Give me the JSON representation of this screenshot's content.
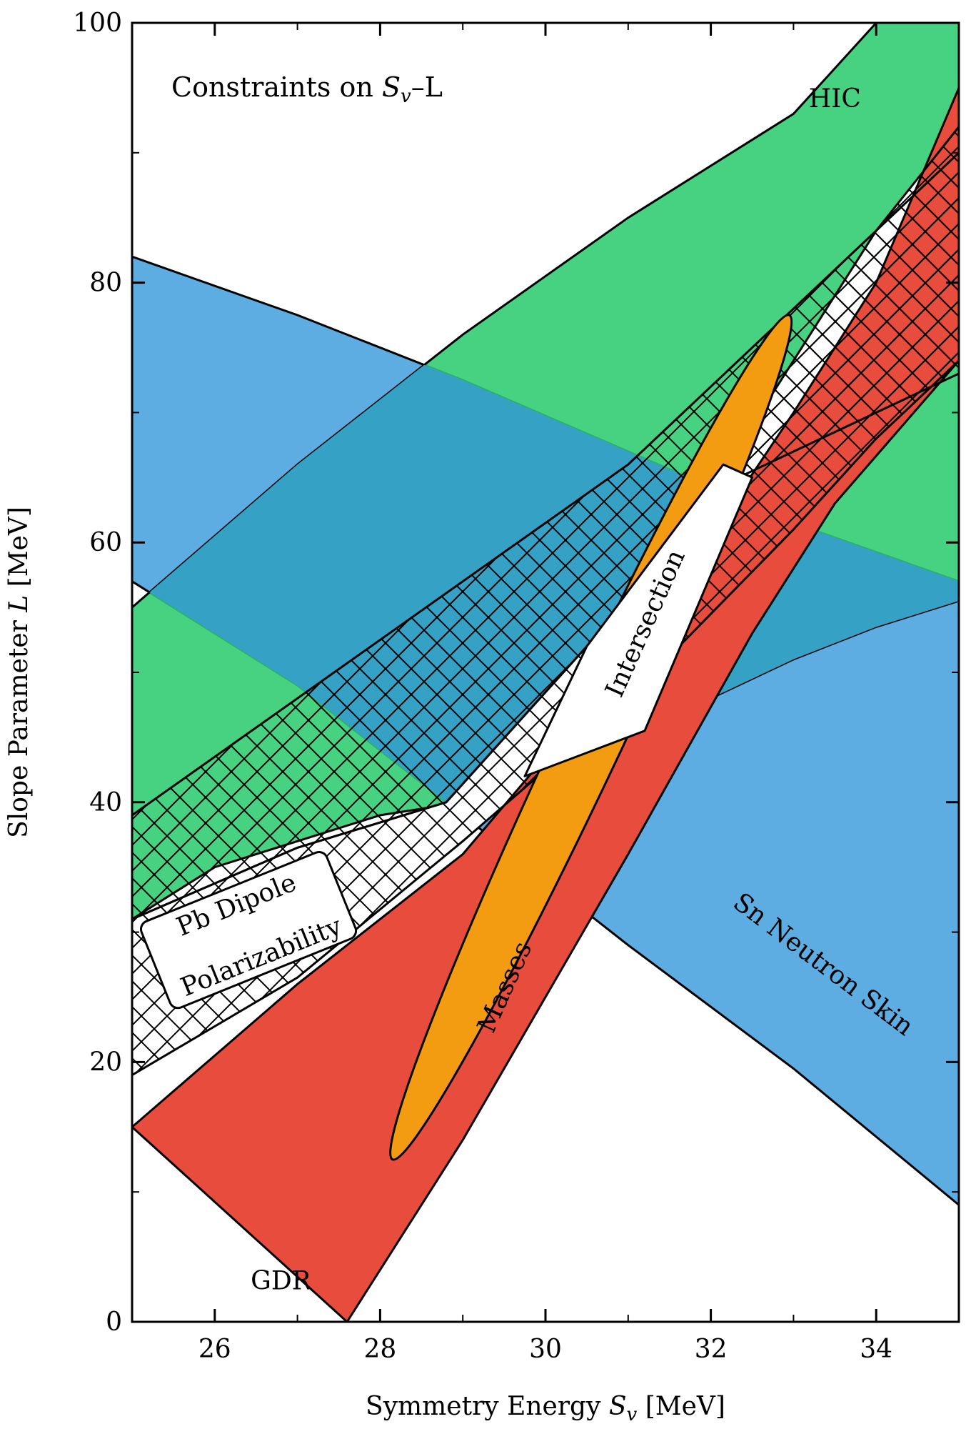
{
  "chart_data": {
    "type": "area",
    "title": "Constraints on S_v–L",
    "title_parts": {
      "prefix": "Constraints on ",
      "var": "S",
      "sub": "v",
      "suffix": "–L"
    },
    "xlabel": "Symmetry Energy S_v [MeV]",
    "xlabel_parts": {
      "prefix": "Symmetry Energy ",
      "var": "S",
      "sub": "v",
      "suffix": " [MeV]"
    },
    "ylabel": "Slope Parameter L [MeV]",
    "ylabel_parts": {
      "prefix": "Slope Parameter ",
      "var": "L",
      "suffix": " [MeV]"
    },
    "xlim": [
      25,
      35
    ],
    "ylim": [
      0,
      100
    ],
    "xticks": [
      26,
      28,
      30,
      32,
      34
    ],
    "yticks": [
      0,
      20,
      40,
      60,
      80,
      100
    ],
    "grid": false,
    "colors": {
      "hic": "#2ecc71",
      "sn": "#5dade2",
      "gdr": "#e74c3c",
      "masses": "#f39c12",
      "overlap_hic_sn": "#35a2c5"
    },
    "regions": [
      {
        "id": "sn-neutron-skin",
        "label": "Sn Neutron Skin",
        "color": "#5dade2",
        "upper": [
          [
            25,
            82
          ],
          [
            27,
            77.5
          ],
          [
            29,
            72.5
          ],
          [
            31,
            67
          ],
          [
            33,
            61.5
          ],
          [
            35,
            57
          ]
        ],
        "lower": [
          [
            25,
            57
          ],
          [
            27,
            49
          ],
          [
            29,
            39
          ],
          [
            31,
            29
          ],
          [
            33,
            19.5
          ],
          [
            35,
            9
          ]
        ]
      },
      {
        "id": "hic",
        "label": "HIC",
        "color": "#2ecc71",
        "upper": [
          [
            25,
            55
          ],
          [
            27,
            66
          ],
          [
            29,
            76
          ],
          [
            31,
            85
          ],
          [
            33,
            93
          ],
          [
            34,
            100
          ],
          [
            35,
            100
          ]
        ],
        "lower": [
          [
            25,
            31
          ],
          [
            26,
            35
          ],
          [
            27,
            37
          ],
          [
            28,
            39
          ],
          [
            29,
            40
          ],
          [
            29.5,
            41
          ],
          [
            30,
            42
          ],
          [
            31,
            44
          ],
          [
            32,
            48
          ],
          [
            33,
            51
          ],
          [
            34,
            53.5
          ],
          [
            35,
            55.5
          ]
        ]
      },
      {
        "id": "gdr",
        "label": "GDR",
        "color": "#e74c3c",
        "upper": [
          [
            25,
            15
          ],
          [
            27,
            26
          ],
          [
            29,
            36
          ],
          [
            31,
            51
          ],
          [
            33,
            70
          ],
          [
            34,
            80
          ],
          [
            35,
            95
          ]
        ],
        "lower": [
          [
            27.6,
            0
          ],
          [
            29,
            14
          ],
          [
            31,
            36
          ],
          [
            32.5,
            53
          ],
          [
            33.5,
            63
          ],
          [
            35,
            74
          ]
        ]
      },
      {
        "id": "pb-dipole-polarizability",
        "label": "Pb Dipole Polarizability",
        "color": "#ffffff",
        "hatch": true,
        "upper": [
          [
            25,
            31
          ],
          [
            27,
            36.5
          ],
          [
            28.8,
            40
          ],
          [
            30.5,
            52
          ],
          [
            32,
            64
          ],
          [
            34,
            84
          ],
          [
            35,
            92
          ]
        ],
        "lower": [
          [
            25,
            19
          ],
          [
            27,
            26.5
          ],
          [
            29,
            37
          ],
          [
            31,
            48
          ],
          [
            33,
            61
          ],
          [
            34,
            68
          ],
          [
            35,
            74
          ]
        ]
      },
      {
        "id": "masses",
        "label": "Masses",
        "color": "#f39c12",
        "ellipse_axis": [
          [
            28.15,
            12.5
          ],
          [
            32.95,
            77.5
          ]
        ]
      },
      {
        "id": "intersection",
        "label": "Intersection",
        "color": "#ffffff",
        "polygon": [
          [
            29.75,
            42
          ],
          [
            31.2,
            45.5
          ],
          [
            32.5,
            65
          ],
          [
            32.15,
            66
          ],
          [
            30.5,
            52
          ]
        ]
      },
      {
        "id": "pb-hatch-upper-band",
        "hatch": true,
        "upper": [
          [
            25,
            39
          ],
          [
            27,
            48
          ],
          [
            29,
            57
          ],
          [
            31,
            66
          ],
          [
            33,
            78
          ],
          [
            34,
            84
          ],
          [
            35,
            90
          ]
        ],
        "lower": [
          [
            25,
            31
          ],
          [
            27,
            36.5
          ],
          [
            28.8,
            40
          ],
          [
            30.5,
            52
          ],
          [
            32,
            64
          ],
          [
            34,
            70
          ],
          [
            35,
            73
          ]
        ]
      }
    ],
    "annotations": [
      {
        "text": "HIC",
        "x": 33.5,
        "y": 93.5
      },
      {
        "text": "GDR",
        "x": 26.8,
        "y": 2.5
      },
      {
        "text": "Sn Neutron Skin",
        "x": 33.3,
        "y": 27,
        "rotation": 37
      },
      {
        "text": "Masses",
        "x": 29.6,
        "y": 25.5,
        "rotation": -66
      },
      {
        "text": "Intersection",
        "x": 31.3,
        "y": 53.5,
        "rotation": -66
      },
      {
        "text": "Pb Dipole",
        "x": 26.3,
        "y": 31.5,
        "rotation": -22
      },
      {
        "text": "Polarizability",
        "x": 26.6,
        "y": 27.5,
        "rotation": -22
      }
    ]
  }
}
